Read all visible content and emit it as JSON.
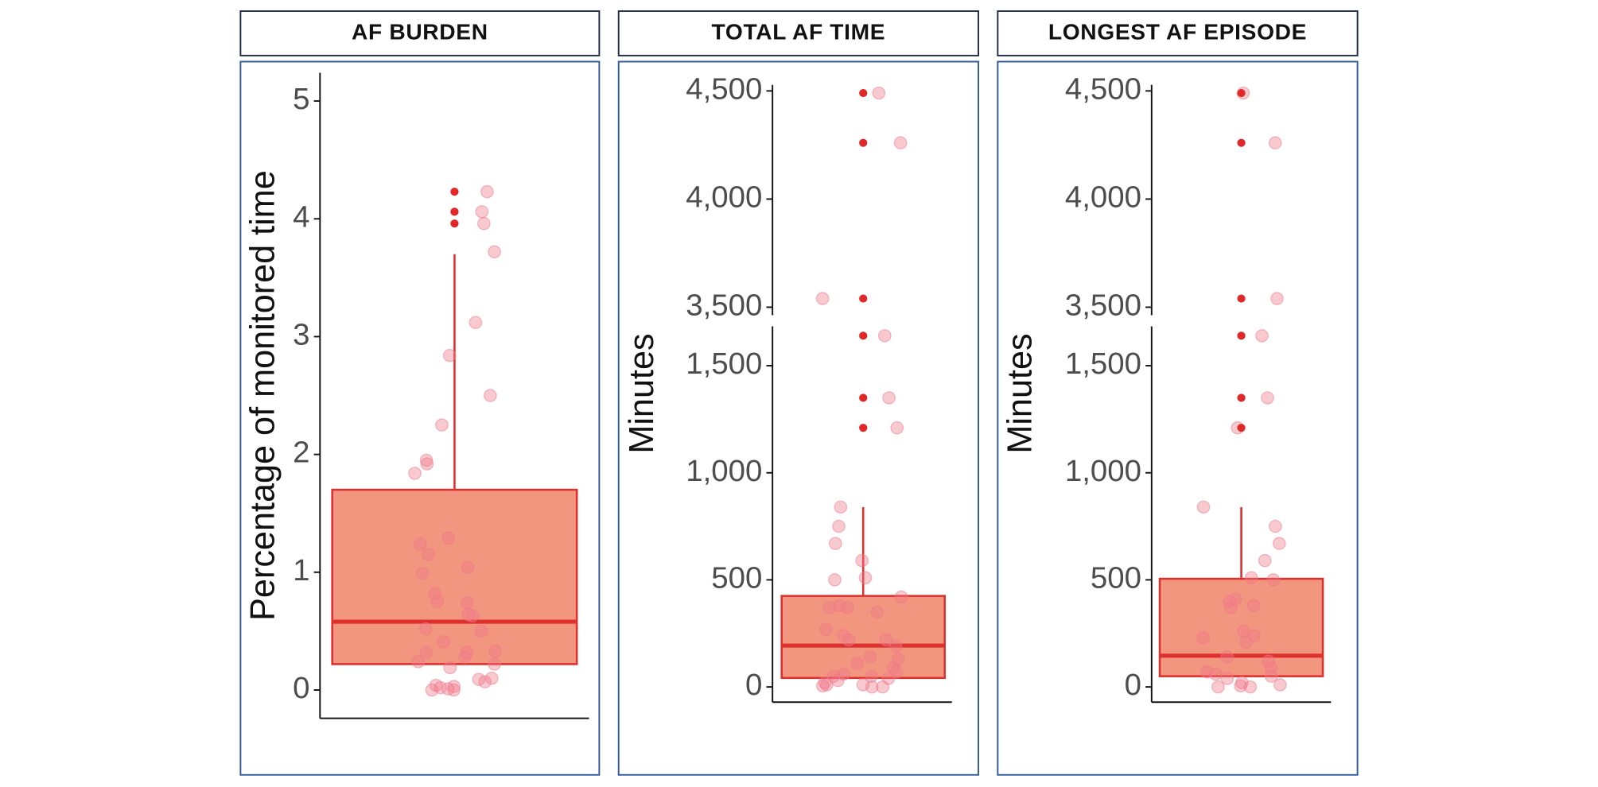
{
  "chart_data": [
    {
      "type": "box",
      "title": "AF BURDEN",
      "ylabel": "Percentage of monitored time",
      "ylim": [
        -0.24,
        5.24
      ],
      "yticks": [
        0,
        1,
        2,
        3,
        4,
        5
      ],
      "box": {
        "q1": 0.22,
        "median": 0.58,
        "q3": 1.7,
        "whisker_high": 3.7
      },
      "outliers": [
        4.23,
        4.06,
        3.96
      ],
      "points": [
        4.23,
        4.06,
        3.96,
        3.72,
        3.12,
        2.84,
        2.5,
        2.25,
        1.95,
        1.92,
        1.84,
        1.29,
        1.24,
        1.15,
        1.04,
        0.99,
        0.82,
        0.75,
        0.74,
        0.64,
        0.63,
        0.52,
        0.5,
        0.41,
        0.33,
        0.32,
        0.32,
        0.28,
        0.24,
        0.22,
        0.19,
        0.1,
        0.09,
        0.07,
        0.04,
        0.03,
        0.02,
        0.01,
        0,
        0
      ],
      "box_color": "#f2967f",
      "line_color": "#e0302e",
      "point_color": "#f0788a",
      "outlier_color": "#e02828"
    },
    {
      "type": "box",
      "title": "TOTAL AF TIME",
      "ylabel": "Minutes",
      "ylim": [
        -71,
        1684
      ],
      "yticks": [
        0,
        500,
        {
          "value": 1000,
          "label": "1,000"
        },
        {
          "value": 1500,
          "label": "1,500"
        }
      ],
      "ylim_upper": [
        3463,
        4528
      ],
      "yticks_upper": [
        {
          "value": 3500,
          "label": "3,500"
        },
        {
          "value": 4000,
          "label": "4,000"
        },
        {
          "value": 4500,
          "label": "4,500"
        }
      ],
      "box": {
        "q1": 42,
        "median": 193,
        "q3": 425,
        "whisker_high": 840
      },
      "outliers": [
        4490,
        4260,
        3540,
        1640,
        1350,
        1210
      ],
      "points": [
        4490,
        4260,
        3540,
        1640,
        1350,
        1210,
        840,
        750,
        670,
        590,
        510,
        500,
        420,
        380,
        370,
        370,
        350,
        270,
        240,
        220,
        220,
        190,
        140,
        130,
        110,
        90,
        70,
        60,
        50,
        50,
        40,
        30,
        20,
        10,
        10,
        5,
        0,
        0
      ],
      "box_color": "#f2967f",
      "line_color": "#e0302e",
      "point_color": "#f0788a",
      "outlier_color": "#e02828"
    },
    {
      "type": "box",
      "title": "LONGEST AF EPISODE",
      "ylabel": "Minutes",
      "ylim": [
        -71,
        1684
      ],
      "yticks": [
        0,
        500,
        {
          "value": 1000,
          "label": "1,000"
        },
        {
          "value": 1500,
          "label": "1,500"
        }
      ],
      "ylim_upper": [
        3463,
        4528
      ],
      "yticks_upper": [
        {
          "value": 3500,
          "label": "3,500"
        },
        {
          "value": 4000,
          "label": "4,000"
        },
        {
          "value": 4500,
          "label": "4,500"
        }
      ],
      "box": {
        "q1": 50,
        "median": 146,
        "q3": 505,
        "whisker_high": 840
      },
      "outliers": [
        4490,
        4260,
        3540,
        1640,
        1350,
        1210
      ],
      "points": [
        4490,
        4260,
        3540,
        1640,
        1350,
        1210,
        840,
        750,
        670,
        590,
        510,
        500,
        410,
        400,
        380,
        370,
        260,
        240,
        230,
        210,
        140,
        120,
        90,
        70,
        60,
        50,
        40,
        20,
        10,
        5,
        0,
        0
      ],
      "box_color": "#f2967f",
      "line_color": "#e0302e",
      "point_color": "#f0788a",
      "outlier_color": "#e02828"
    }
  ]
}
